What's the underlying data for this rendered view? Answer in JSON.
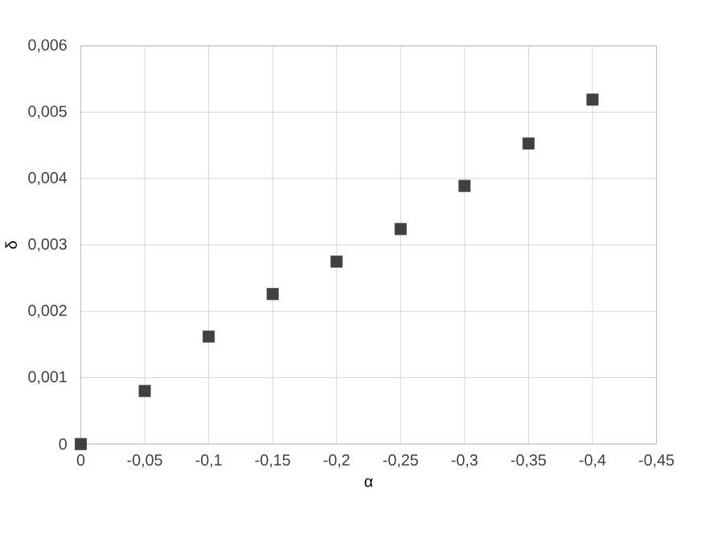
{
  "chart_data": {
    "type": "scatter",
    "xlabel": "α",
    "ylabel": "δ",
    "x": [
      0,
      -0.05,
      -0.1,
      -0.15,
      -0.2,
      -0.25,
      -0.3,
      -0.35,
      -0.4
    ],
    "series": [
      {
        "color": "#404040",
        "values": [
          0,
          0.0008,
          0.00162,
          0.00226,
          0.00275,
          0.00324,
          0.00389,
          0.00453,
          0.00519
        ]
      }
    ],
    "xlim": [
      0,
      -0.45
    ],
    "ylim": [
      0,
      0.006
    ],
    "xticks": [
      0,
      {
        "value": -0.05,
        "label": "-0,05"
      },
      {
        "value": -0.1,
        "label": "-0,1"
      },
      {
        "value": -0.15,
        "label": "-0,15"
      },
      {
        "value": -0.2,
        "label": "-0,2"
      },
      {
        "value": -0.25,
        "label": "-0,25"
      },
      {
        "value": -0.3,
        "label": "-0,3"
      },
      {
        "value": -0.35,
        "label": "-0,35"
      },
      {
        "value": -0.4,
        "label": "-0,4"
      },
      {
        "value": -0.45,
        "label": "-0,45"
      }
    ],
    "yticks": [
      0,
      {
        "value": 0.001,
        "label": "0,001"
      },
      {
        "value": 0.002,
        "label": "0,002"
      },
      {
        "value": 0.003,
        "label": "0,003"
      },
      {
        "value": 0.004,
        "label": "0,004"
      },
      {
        "value": 0.005,
        "label": "0,005"
      },
      {
        "value": 0.006,
        "label": "0,006"
      }
    ],
    "grid": true,
    "marker": "square"
  }
}
